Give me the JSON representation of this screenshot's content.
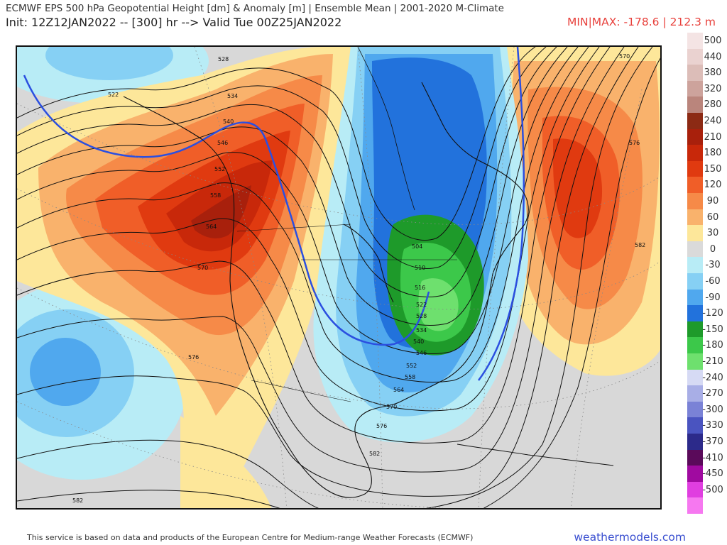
{
  "header": {
    "title": "ECMWF EPS 500 hPa Geopotential Height [dm] & Anomaly [m] | Ensemble Mean | 2001-2020 M-Climate",
    "init": "Init: 12Z12JAN2022 -- [300] hr --> Valid Tue 00Z25JAN2022",
    "minmax": "MIN|MAX: -178.6 | 212.3 m"
  },
  "colorbar": {
    "levels": [
      {
        "label": "500",
        "color": "#f4e4e4"
      },
      {
        "label": "440",
        "color": "#ead2d0"
      },
      {
        "label": "380",
        "color": "#dcbdb8"
      },
      {
        "label": "320",
        "color": "#cda39c"
      },
      {
        "label": "280",
        "color": "#ba857c"
      },
      {
        "label": "240",
        "color": "#8c2a14"
      },
      {
        "label": "210",
        "color": "#a8200c"
      },
      {
        "label": "180",
        "color": "#c8280a"
      },
      {
        "label": "150",
        "color": "#e03a10"
      },
      {
        "label": "120",
        "color": "#f05e28"
      },
      {
        "label": "90",
        "color": "#f68a48"
      },
      {
        "label": "60",
        "color": "#f9b26c"
      },
      {
        "label": "30",
        "color": "#fde79a"
      },
      {
        "label": "0",
        "color": "#dadada"
      },
      {
        "label": "-30",
        "color": "#b8ecf6"
      },
      {
        "label": "-60",
        "color": "#86d0f4"
      },
      {
        "label": "-90",
        "color": "#50a8ee"
      },
      {
        "label": "-120",
        "color": "#2272dc"
      },
      {
        "label": "-150",
        "color": "#1e9a2a"
      },
      {
        "label": "-180",
        "color": "#3cc84a"
      },
      {
        "label": "-210",
        "color": "#6ee06e"
      },
      {
        "label": "-240",
        "color": "#d6daf4"
      },
      {
        "label": "-270",
        "color": "#a8aee6"
      },
      {
        "label": "-300",
        "color": "#7a82d6"
      },
      {
        "label": "-330",
        "color": "#4a54c0"
      },
      {
        "label": "-370",
        "color": "#2c2a8a"
      },
      {
        "label": "-410",
        "color": "#5a0a5a"
      },
      {
        "label": "-450",
        "color": "#a00aa0"
      },
      {
        "label": "-500",
        "color": "#e03ee0"
      },
      {
        "label": "",
        "color": "#f678f0"
      }
    ]
  },
  "contour_labels": [
    "528",
    "522",
    "534",
    "540",
    "546",
    "552",
    "558",
    "564",
    "570",
    "570",
    "576",
    "576",
    "582",
    "582",
    "582",
    "504",
    "510",
    "516",
    "522",
    "528",
    "534",
    "540",
    "546",
    "552",
    "558",
    "564",
    "570",
    "576"
  ],
  "footer": {
    "credit": "This service is based on data and products of the European Centre for Medium-range Weather Forecasts (ECMWF)",
    "site": "weathermodels.com"
  }
}
